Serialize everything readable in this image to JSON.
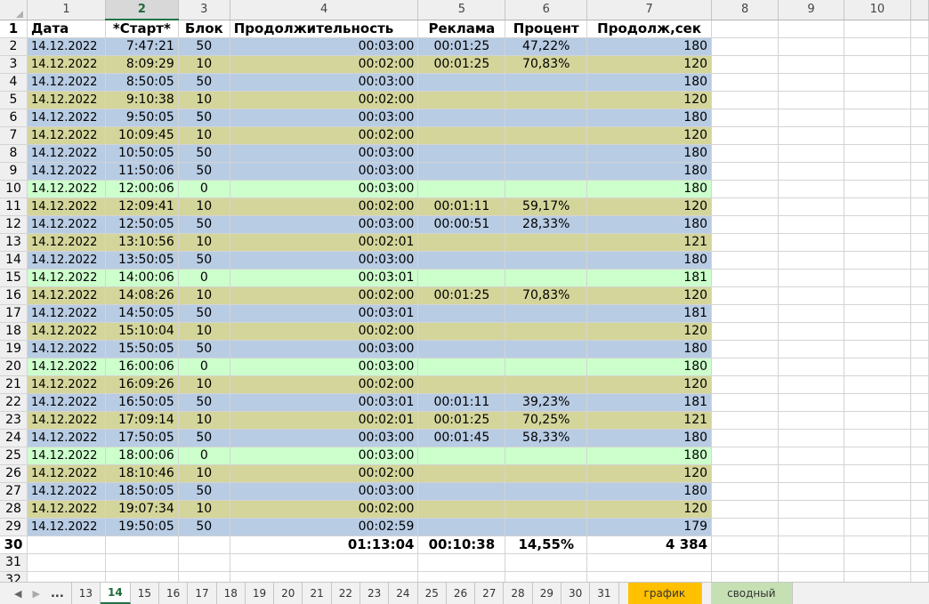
{
  "colors": {
    "blue": "#b8cce4",
    "olive": "#d4d59a",
    "green": "#ccffcc",
    "tab_graf": "#ffc000",
    "tab_svod": "#c6e0b4",
    "accent": "#217346"
  },
  "column_headers": [
    "1",
    "2",
    "3",
    "4",
    "5",
    "6",
    "7",
    "8",
    "9",
    "10"
  ],
  "active_column": "2",
  "header_row": {
    "c1": "Дата",
    "c2": "*Старт*",
    "c3": "Блок",
    "c4": "Продолжительность",
    "c5": "Реклама",
    "c6": "Процент",
    "c7": "Продолж,сек"
  },
  "rows": [
    {
      "n": "2",
      "color": "blue",
      "date": "14.12.2022",
      "start": "7:47:21",
      "block": "50",
      "dur": "00:03:00",
      "ad": "00:01:25",
      "pct": "47,22%",
      "sec": "180"
    },
    {
      "n": "3",
      "color": "olive",
      "date": "14.12.2022",
      "start": "8:09:29",
      "block": "10",
      "dur": "00:02:00",
      "ad": "00:01:25",
      "pct": "70,83%",
      "sec": "120"
    },
    {
      "n": "4",
      "color": "blue",
      "date": "14.12.2022",
      "start": "8:50:05",
      "block": "50",
      "dur": "00:03:00",
      "ad": "",
      "pct": "",
      "sec": "180"
    },
    {
      "n": "5",
      "color": "olive",
      "date": "14.12.2022",
      "start": "9:10:38",
      "block": "10",
      "dur": "00:02:00",
      "ad": "",
      "pct": "",
      "sec": "120"
    },
    {
      "n": "6",
      "color": "blue",
      "date": "14.12.2022",
      "start": "9:50:05",
      "block": "50",
      "dur": "00:03:00",
      "ad": "",
      "pct": "",
      "sec": "180"
    },
    {
      "n": "7",
      "color": "olive",
      "date": "14.12.2022",
      "start": "10:09:45",
      "block": "10",
      "dur": "00:02:00",
      "ad": "",
      "pct": "",
      "sec": "120"
    },
    {
      "n": "8",
      "color": "blue",
      "date": "14.12.2022",
      "start": "10:50:05",
      "block": "50",
      "dur": "00:03:00",
      "ad": "",
      "pct": "",
      "sec": "180"
    },
    {
      "n": "9",
      "color": "blue",
      "date": "14.12.2022",
      "start": "11:50:06",
      "block": "50",
      "dur": "00:03:00",
      "ad": "",
      "pct": "",
      "sec": "180"
    },
    {
      "n": "10",
      "color": "green",
      "date": "14.12.2022",
      "start": "12:00:06",
      "block": "0",
      "dur": "00:03:00",
      "ad": "",
      "pct": "",
      "sec": "180"
    },
    {
      "n": "11",
      "color": "olive",
      "date": "14.12.2022",
      "start": "12:09:41",
      "block": "10",
      "dur": "00:02:00",
      "ad": "00:01:11",
      "pct": "59,17%",
      "sec": "120"
    },
    {
      "n": "12",
      "color": "blue",
      "date": "14.12.2022",
      "start": "12:50:05",
      "block": "50",
      "dur": "00:03:00",
      "ad": "00:00:51",
      "pct": "28,33%",
      "sec": "180"
    },
    {
      "n": "13",
      "color": "olive",
      "date": "14.12.2022",
      "start": "13:10:56",
      "block": "10",
      "dur": "00:02:01",
      "ad": "",
      "pct": "",
      "sec": "121"
    },
    {
      "n": "14",
      "color": "blue",
      "date": "14.12.2022",
      "start": "13:50:05",
      "block": "50",
      "dur": "00:03:00",
      "ad": "",
      "pct": "",
      "sec": "180"
    },
    {
      "n": "15",
      "color": "green",
      "date": "14.12.2022",
      "start": "14:00:06",
      "block": "0",
      "dur": "00:03:01",
      "ad": "",
      "pct": "",
      "sec": "181"
    },
    {
      "n": "16",
      "color": "olive",
      "date": "14.12.2022",
      "start": "14:08:26",
      "block": "10",
      "dur": "00:02:00",
      "ad": "00:01:25",
      "pct": "70,83%",
      "sec": "120"
    },
    {
      "n": "17",
      "color": "blue",
      "date": "14.12.2022",
      "start": "14:50:05",
      "block": "50",
      "dur": "00:03:01",
      "ad": "",
      "pct": "",
      "sec": "181"
    },
    {
      "n": "18",
      "color": "olive",
      "date": "14.12.2022",
      "start": "15:10:04",
      "block": "10",
      "dur": "00:02:00",
      "ad": "",
      "pct": "",
      "sec": "120"
    },
    {
      "n": "19",
      "color": "blue",
      "date": "14.12.2022",
      "start": "15:50:05",
      "block": "50",
      "dur": "00:03:00",
      "ad": "",
      "pct": "",
      "sec": "180"
    },
    {
      "n": "20",
      "color": "green",
      "date": "14.12.2022",
      "start": "16:00:06",
      "block": "0",
      "dur": "00:03:00",
      "ad": "",
      "pct": "",
      "sec": "180"
    },
    {
      "n": "21",
      "color": "olive",
      "date": "14.12.2022",
      "start": "16:09:26",
      "block": "10",
      "dur": "00:02:00",
      "ad": "",
      "pct": "",
      "sec": "120"
    },
    {
      "n": "22",
      "color": "blue",
      "date": "14.12.2022",
      "start": "16:50:05",
      "block": "50",
      "dur": "00:03:01",
      "ad": "00:01:11",
      "pct": "39,23%",
      "sec": "181"
    },
    {
      "n": "23",
      "color": "olive",
      "date": "14.12.2022",
      "start": "17:09:14",
      "block": "10",
      "dur": "00:02:01",
      "ad": "00:01:25",
      "pct": "70,25%",
      "sec": "121"
    },
    {
      "n": "24",
      "color": "blue",
      "date": "14.12.2022",
      "start": "17:50:05",
      "block": "50",
      "dur": "00:03:00",
      "ad": "00:01:45",
      "pct": "58,33%",
      "sec": "180"
    },
    {
      "n": "25",
      "color": "green",
      "date": "14.12.2022",
      "start": "18:00:06",
      "block": "0",
      "dur": "00:03:00",
      "ad": "",
      "pct": "",
      "sec": "180"
    },
    {
      "n": "26",
      "color": "olive",
      "date": "14.12.2022",
      "start": "18:10:46",
      "block": "10",
      "dur": "00:02:00",
      "ad": "",
      "pct": "",
      "sec": "120"
    },
    {
      "n": "27",
      "color": "blue",
      "date": "14.12.2022",
      "start": "18:50:05",
      "block": "50",
      "dur": "00:03:00",
      "ad": "",
      "pct": "",
      "sec": "180"
    },
    {
      "n": "28",
      "color": "olive",
      "date": "14.12.2022",
      "start": "19:07:34",
      "block": "10",
      "dur": "00:02:00",
      "ad": "",
      "pct": "",
      "sec": "120"
    },
    {
      "n": "29",
      "color": "blue",
      "date": "14.12.2022",
      "start": "19:50:05",
      "block": "50",
      "dur": "00:02:59",
      "ad": "",
      "pct": "",
      "sec": "179"
    }
  ],
  "totals": {
    "n": "30",
    "dur": "01:13:04",
    "ad": "00:10:38",
    "pct": "14,55%",
    "sec": "4 384"
  },
  "empty_rows": [
    "31",
    "32"
  ],
  "tabs": {
    "ellipsis": "...",
    "sheets": [
      "13",
      "14",
      "15",
      "16",
      "17",
      "18",
      "19",
      "20",
      "21",
      "22",
      "23",
      "24",
      "25",
      "26",
      "27",
      "28",
      "29",
      "30",
      "31"
    ],
    "active": "14",
    "graf": "график",
    "svod": "сводный"
  }
}
